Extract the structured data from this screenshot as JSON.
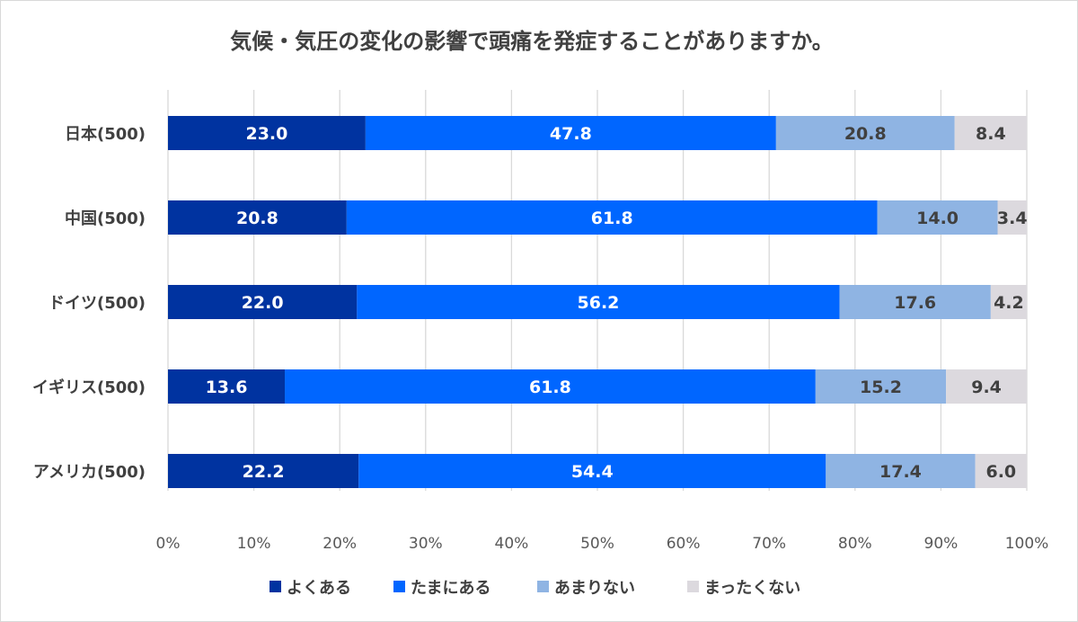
{
  "chart_data": {
    "type": "bar",
    "orientation": "horizontal",
    "stacked": true,
    "title": "気候・気圧の変化の影響で頭痛を発症することがありますか。",
    "categories": [
      "日本(500)",
      "中国(500)",
      "ドイツ(500)",
      "イギリス(500)",
      "アメリカ(500)"
    ],
    "series": [
      {
        "name": "よくある",
        "color": "#0033a0",
        "values": [
          23.0,
          20.8,
          22.0,
          13.6,
          22.2
        ]
      },
      {
        "name": "たまにある",
        "color": "#0066ff",
        "values": [
          47.8,
          61.8,
          56.2,
          61.8,
          54.4
        ]
      },
      {
        "name": "あまりない",
        "color": "#8fb4e3",
        "values": [
          20.8,
          14.0,
          17.6,
          15.2,
          17.4
        ]
      },
      {
        "name": "まったくない",
        "color": "#dcd9de",
        "values": [
          8.4,
          3.4,
          4.2,
          9.4,
          6.0
        ]
      }
    ],
    "xlim": [
      0,
      100
    ],
    "xticks": [
      "0%",
      "10%",
      "20%",
      "30%",
      "40%",
      "50%",
      "60%",
      "70%",
      "80%",
      "90%",
      "100%"
    ],
    "grid": true,
    "legend": "bottom"
  }
}
